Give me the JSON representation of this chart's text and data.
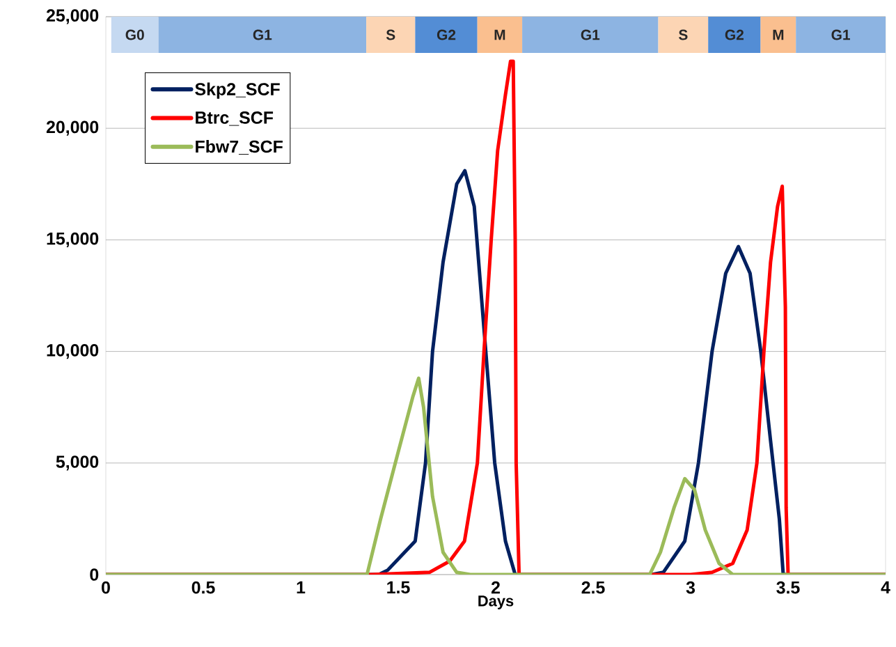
{
  "chart_data": {
    "type": "line",
    "xlabel": "Days",
    "xlim": [
      0,
      4
    ],
    "xticks": [
      0,
      0.5,
      1,
      1.5,
      2,
      2.5,
      3,
      3.5,
      4
    ],
    "ylim": [
      0,
      25000
    ],
    "yticks": [
      {
        "value": 0,
        "label": "0"
      },
      {
        "value": 5000,
        "label": "5,000"
      },
      {
        "value": 10000,
        "label": "10,000"
      },
      {
        "value": 15000,
        "label": "15,000"
      },
      {
        "value": 20000,
        "label": "20,000"
      },
      {
        "value": 25000,
        "label": "25,000"
      }
    ],
    "grid": "y",
    "legend": "top left",
    "line_style": "solid",
    "bands": [
      {
        "axis": "x",
        "from": 0.028,
        "to": 0.27,
        "label": "G0",
        "color": "#c5d9f1"
      },
      {
        "axis": "x",
        "from": 0.27,
        "to": 1.336,
        "label": "G1",
        "color": "#8db4e2"
      },
      {
        "axis": "x",
        "from": 1.336,
        "to": 1.587,
        "label": "S",
        "color": "#fcd5b4"
      },
      {
        "axis": "x",
        "from": 1.587,
        "to": 1.906,
        "label": "G2",
        "color": "#538dd5"
      },
      {
        "axis": "x",
        "from": 1.906,
        "to": 2.136,
        "label": "M",
        "color": "#fabf8f"
      },
      {
        "axis": "x",
        "from": 2.136,
        "to": 2.834,
        "label": "G1",
        "color": "#8db4e2"
      },
      {
        "axis": "x",
        "from": 2.834,
        "to": 3.09,
        "label": "S",
        "color": "#fcd5b4"
      },
      {
        "axis": "x",
        "from": 3.09,
        "to": 3.359,
        "label": "G2",
        "color": "#538dd5"
      },
      {
        "axis": "x",
        "from": 3.359,
        "to": 3.54,
        "label": "M",
        "color": "#fabf8f"
      },
      {
        "axis": "x",
        "from": 3.54,
        "to": 4.0,
        "label": "G1",
        "color": "#8db4e2"
      }
    ],
    "series": [
      {
        "name": "Skp2_SCF",
        "color": "#002060",
        "x": [
          0,
          1.4,
          1.446,
          1.587,
          1.64,
          1.676,
          1.73,
          1.8,
          1.842,
          1.89,
          1.94,
          1.995,
          2.05,
          2.1,
          2.8,
          2.86,
          2.97,
          3.04,
          3.11,
          3.18,
          3.245,
          3.305,
          3.36,
          3.41,
          3.455,
          3.475,
          4
        ],
        "values": [
          0,
          0,
          200,
          1500,
          5000,
          10000,
          14000,
          17500,
          18100,
          16500,
          11000,
          5000,
          1500,
          0,
          0,
          100,
          1500,
          5000,
          10000,
          13500,
          14700,
          13500,
          10000,
          6000,
          2500,
          0,
          0
        ]
      },
      {
        "name": "Btrc_SCF",
        "color": "#ff0000",
        "x": [
          0,
          1.36,
          1.66,
          1.764,
          1.84,
          1.906,
          1.94,
          1.977,
          2.01,
          2.05,
          2.076,
          2.09,
          2.1,
          2.105,
          2.12,
          3.0,
          3.11,
          3.216,
          3.29,
          3.34,
          3.376,
          3.41,
          3.446,
          3.47,
          3.486,
          3.49,
          3.5,
          4
        ],
        "values": [
          0,
          0,
          100,
          600,
          1500,
          5000,
          10000,
          15000,
          19000,
          21500,
          23000,
          23000,
          15000,
          5000,
          0,
          0,
          100,
          500,
          2000,
          5000,
          10000,
          14000,
          16500,
          17400,
          12000,
          3000,
          0,
          0
        ]
      },
      {
        "name": "Fbw7_SCF",
        "color": "#9bbb59",
        "x": [
          0,
          1.34,
          1.41,
          1.5,
          1.576,
          1.605,
          1.63,
          1.676,
          1.73,
          1.8,
          1.87,
          2.79,
          2.845,
          2.915,
          2.97,
          3.02,
          3.075,
          3.146,
          3.216,
          4
        ],
        "values": [
          0,
          0,
          2500,
          5500,
          8000,
          8800,
          7500,
          3500,
          1000,
          100,
          0,
          0,
          1000,
          3000,
          4300,
          3800,
          2000,
          500,
          0,
          0
        ]
      }
    ]
  }
}
